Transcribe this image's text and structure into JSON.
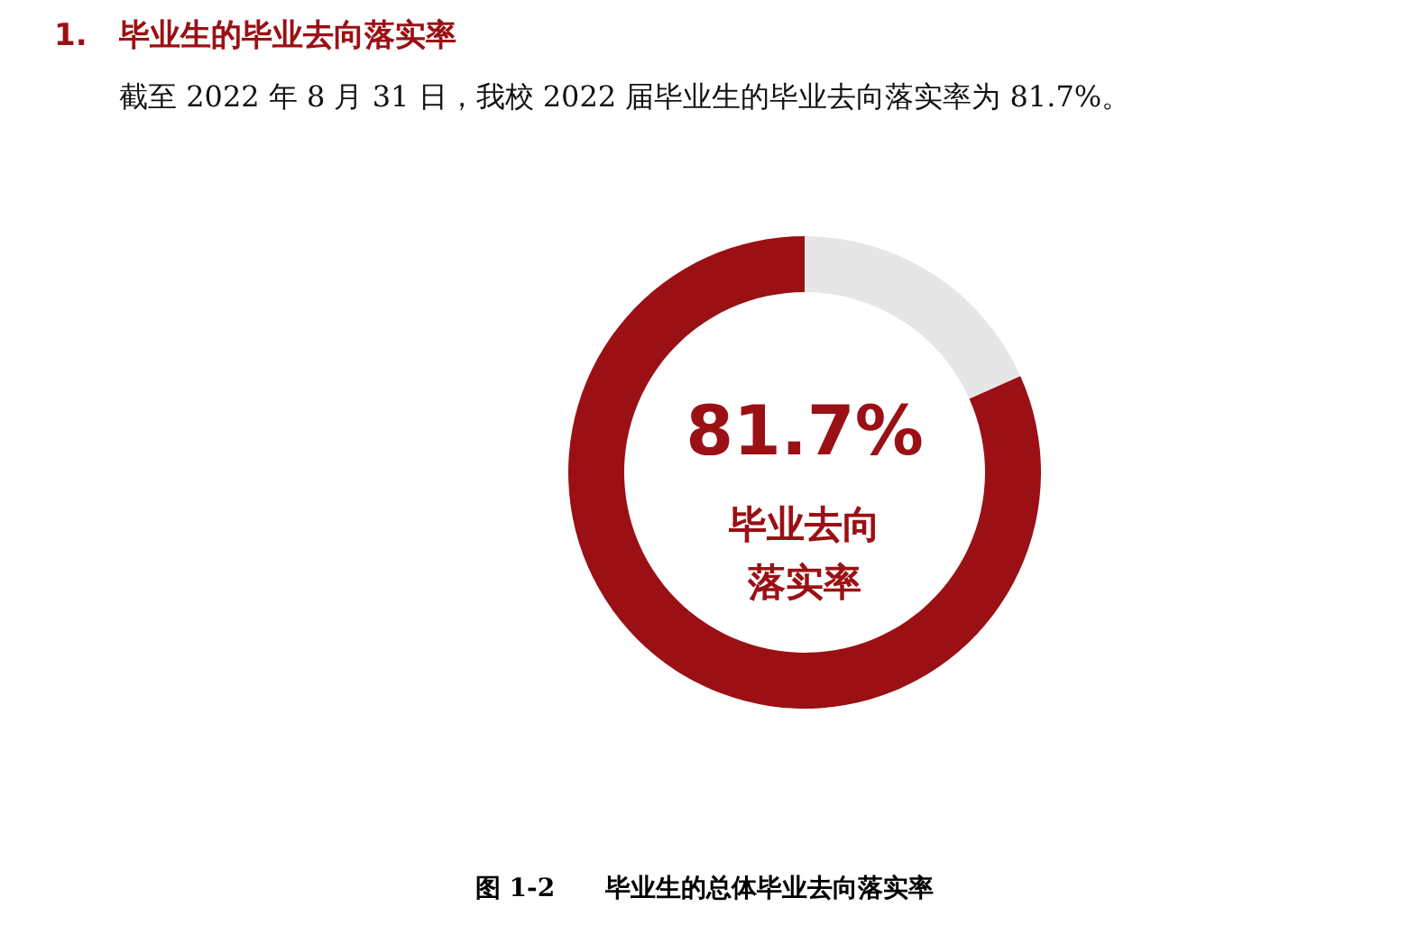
{
  "chart_data": {
    "type": "donut",
    "title": "1.   毕业生的毕业去向落实率",
    "subtitle": "截至 2022 年 8 月 31 日，我校 2022 届毕业生的毕业去向落实率为 81.7%。",
    "categories": [
      null,
      null
    ],
    "values": [
      81.7,
      18.3
    ],
    "colors": [
      "#9b1014",
      "#e6e6e6"
    ],
    "value_labels": [
      "81.7%",
      null
    ],
    "annotations": [
      "毕业去向落实率",
      "图 1-2　　毕业生的总体毕业去向落实率"
    ]
  }
}
